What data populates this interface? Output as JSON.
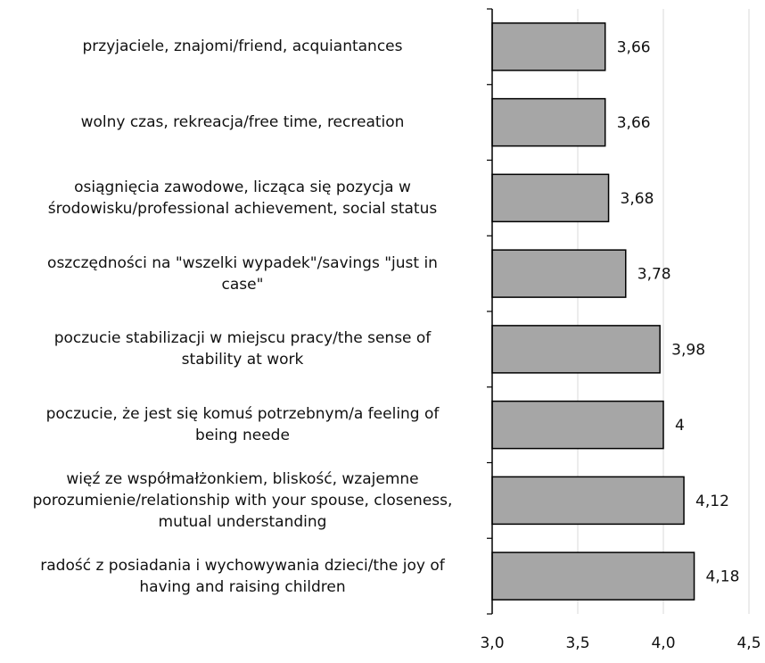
{
  "chart_data": {
    "type": "bar",
    "orientation": "horizontal",
    "title": "",
    "xlabel": "",
    "ylabel": "",
    "xlim": [
      3.0,
      4.5
    ],
    "x_ticks": [
      3.0,
      3.5,
      4.0,
      4.5
    ],
    "x_tick_labels": [
      "3,0",
      "3,5",
      "4,0",
      "4,5"
    ],
    "grid": "vertical",
    "categories": [
      "przyjaciele, znajomi/friend, acquiantances",
      "wolny czas, rekreacja/free time, recreation",
      "osiągnięcia zawodowe, licząca się pozycja w środowisku/professional achievement, social status",
      "oszczędności na \"wszelki wypadek\"/savings \"just in case\"",
      "poczucie stabilizacji w miejscu pracy/the sense of stability at work",
      "poczucie, że jest się komuś potrzebnym/a feeling of being neede",
      "więź ze współmałżonkiem, bliskość, wzajemne porozumienie/relationship with your spouse, closeness, mutual understanding",
      "radość z posiadania i wychowywania dzieci/the joy of having and raising children"
    ],
    "category_lines": [
      [
        "przyjaciele, znajomi/friend, acquiantances"
      ],
      [
        "wolny czas, rekreacja/free time, recreation"
      ],
      [
        "osiągnięcia zawodowe, licząca się pozycja w",
        "środowisku/professional achievement, social status"
      ],
      [
        "oszczędności na \"wszelki wypadek\"/savings \"just in",
        "case\""
      ],
      [
        "poczucie stabilizacji w miejscu pracy/the sense of",
        "stability at work"
      ],
      [
        "poczucie, że jest się komuś potrzebnym/a feeling of",
        "being neede"
      ],
      [
        "więź ze współmałżonkiem, bliskość, wzajemne",
        "porozumienie/relationship with your spouse, closeness,",
        "mutual understanding"
      ],
      [
        "radość z posiadania i wychowywania dzieci/the joy of",
        "having and raising children"
      ]
    ],
    "values": [
      3.66,
      3.66,
      3.68,
      3.78,
      3.98,
      4.0,
      4.12,
      4.18
    ],
    "data_labels": [
      "3,66",
      "3,66",
      "3,68",
      "3,78",
      "3,98",
      "4",
      "4,12",
      "4,18"
    ],
    "colors": {
      "bar_fill": "#a6a6a6",
      "bar_stroke": "#000000",
      "grid": "#d9d9d9",
      "axis": "#000000",
      "text": "#111111"
    }
  }
}
